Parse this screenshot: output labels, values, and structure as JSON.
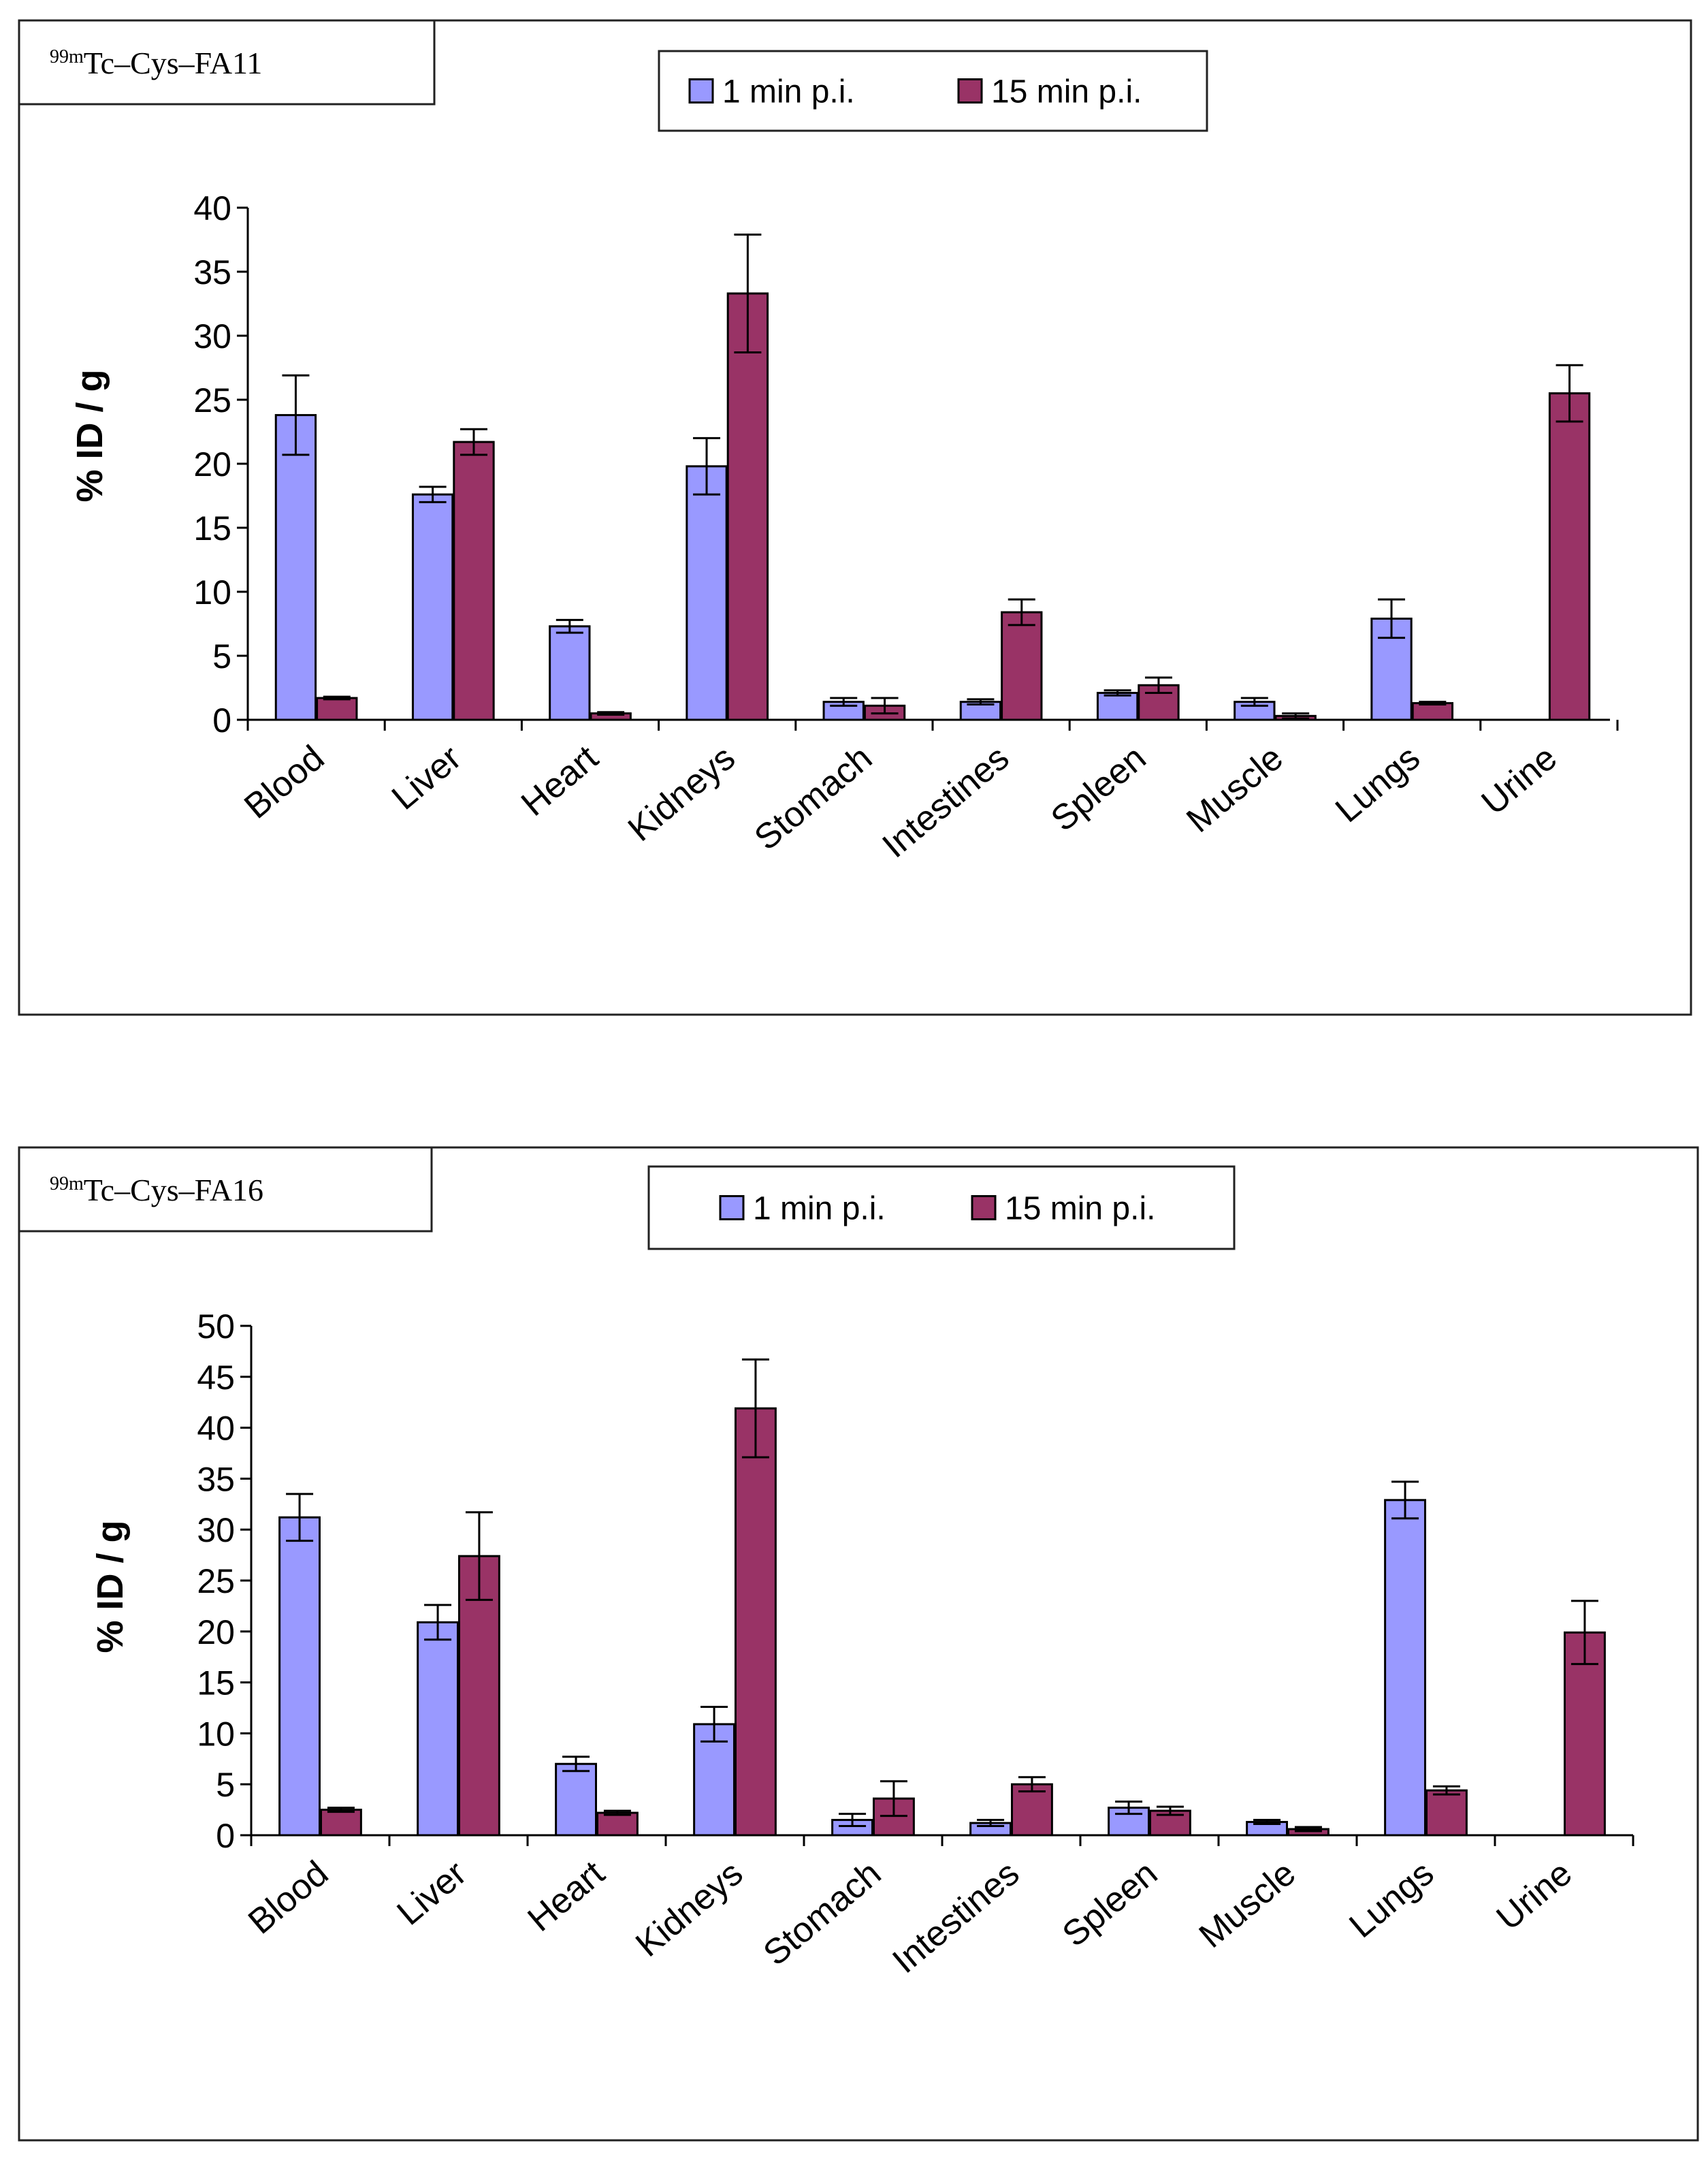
{
  "colors": {
    "series1": "#9999ff",
    "series2": "#993366",
    "axis": "#000000"
  },
  "chart_data": [
    {
      "type": "bar",
      "title_sup": "99m",
      "title": "Tc–Cys–FA11",
      "ylabel": "% ID / g",
      "xlabel": "",
      "ylim": [
        0,
        40
      ],
      "yticks": [
        0,
        5,
        10,
        15,
        20,
        25,
        30,
        35,
        40
      ],
      "legend_position": "top-center",
      "categories": [
        "Blood",
        "Liver",
        "Heart",
        "Kidneys",
        "Stomach",
        "Intestines",
        "Spleen",
        "Muscle",
        "Lungs",
        "Urine"
      ],
      "series": [
        {
          "name": "1 min p.i.",
          "values": [
            23.8,
            17.6,
            7.3,
            19.8,
            1.4,
            1.4,
            2.1,
            1.4,
            7.9,
            0
          ],
          "errors": [
            3.1,
            0.6,
            0.5,
            2.2,
            0.3,
            0.2,
            0.2,
            0.3,
            1.5,
            0
          ]
        },
        {
          "name": "15 min p.i.",
          "values": [
            1.7,
            21.7,
            0.5,
            33.3,
            1.1,
            8.4,
            2.7,
            0.3,
            1.3,
            25.5
          ],
          "errors": [
            0.1,
            1.0,
            0.1,
            4.6,
            0.6,
            1.0,
            0.6,
            0.2,
            0.1,
            2.2
          ]
        }
      ]
    },
    {
      "type": "bar",
      "title_sup": "99m",
      "title": "Tc–Cys–FA16",
      "ylabel": "% ID / g",
      "xlabel": "",
      "ylim": [
        0,
        50
      ],
      "yticks": [
        0,
        5,
        10,
        15,
        20,
        25,
        30,
        35,
        40,
        45,
        50
      ],
      "legend_position": "top-center",
      "categories": [
        "Blood",
        "Liver",
        "Heart",
        "Kidneys",
        "Stomach",
        "Intestines",
        "Spleen",
        "Muscle",
        "Lungs",
        "Urine"
      ],
      "series": [
        {
          "name": "1 min p.i.",
          "values": [
            31.2,
            20.9,
            7.0,
            10.9,
            1.5,
            1.2,
            2.7,
            1.3,
            32.9,
            0
          ],
          "errors": [
            2.3,
            1.7,
            0.7,
            1.7,
            0.6,
            0.3,
            0.6,
            0.2,
            1.8,
            0
          ]
        },
        {
          "name": "15 min p.i.",
          "values": [
            2.5,
            27.4,
            2.2,
            41.9,
            3.6,
            5.0,
            2.4,
            0.6,
            4.4,
            19.9
          ],
          "errors": [
            0.2,
            4.3,
            0.2,
            4.8,
            1.7,
            0.7,
            0.4,
            0.2,
            0.4,
            3.1
          ]
        }
      ]
    }
  ]
}
